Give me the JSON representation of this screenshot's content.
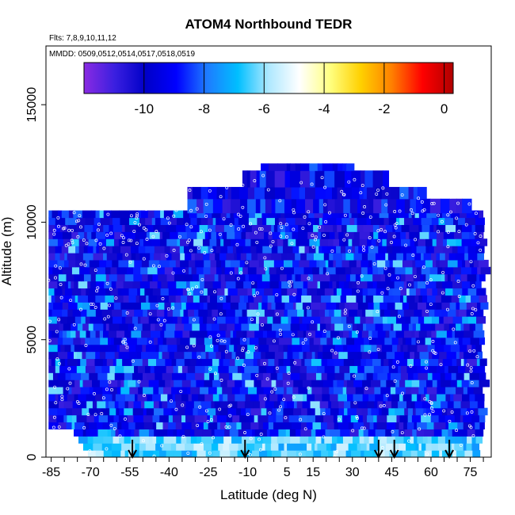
{
  "chart_data": {
    "type": "heatmap",
    "title": "ATOM4 Northbound TEDR",
    "subtitle_flights": "Flts: 7,8,9,10,11,12",
    "subtitle_dates": "MMDD: 0509,0512,0514,0517,0518,0519",
    "xlabel": "Latitude (deg N)",
    "ylabel": "Altitude (m)",
    "xlim": [
      -87,
      83
    ],
    "ylim": [
      0,
      17500
    ],
    "x_ticks": [
      -85,
      -70,
      -55,
      -40,
      -25,
      -10,
      5,
      15,
      30,
      45,
      60,
      75
    ],
    "x_tick_labels": [
      "-85",
      "-70",
      "-55",
      "-40",
      "-25",
      "-10",
      "5",
      "15",
      "30",
      "45",
      "60",
      "75"
    ],
    "y_ticks": [
      0,
      5000,
      10000,
      15000
    ],
    "y_tick_labels": [
      "0",
      "5000",
      "10000",
      "15000"
    ],
    "colorbar": {
      "range": [
        -12,
        0.3
      ],
      "ticks": [
        -10,
        -8,
        -6,
        -4,
        -2,
        0
      ],
      "tick_labels": [
        "-10",
        "-8",
        "-6",
        "-4",
        "-2",
        "0"
      ],
      "colors": [
        "#8a2be2",
        "#3a1fe0",
        "#0000c8",
        "#0000ff",
        "#1e7bff",
        "#00bfff",
        "#aee8ff",
        "#ffffff",
        "#ffff80",
        "#ffd000",
        "#ff8000",
        "#ff0000",
        "#b00000"
      ]
    },
    "dominant_value_range": [
      -11,
      -8
    ],
    "profile_markers_latitude": [
      -54,
      -11,
      40,
      46,
      67
    ],
    "observation_points": "white open circles marking in-flight TEDR samples"
  }
}
